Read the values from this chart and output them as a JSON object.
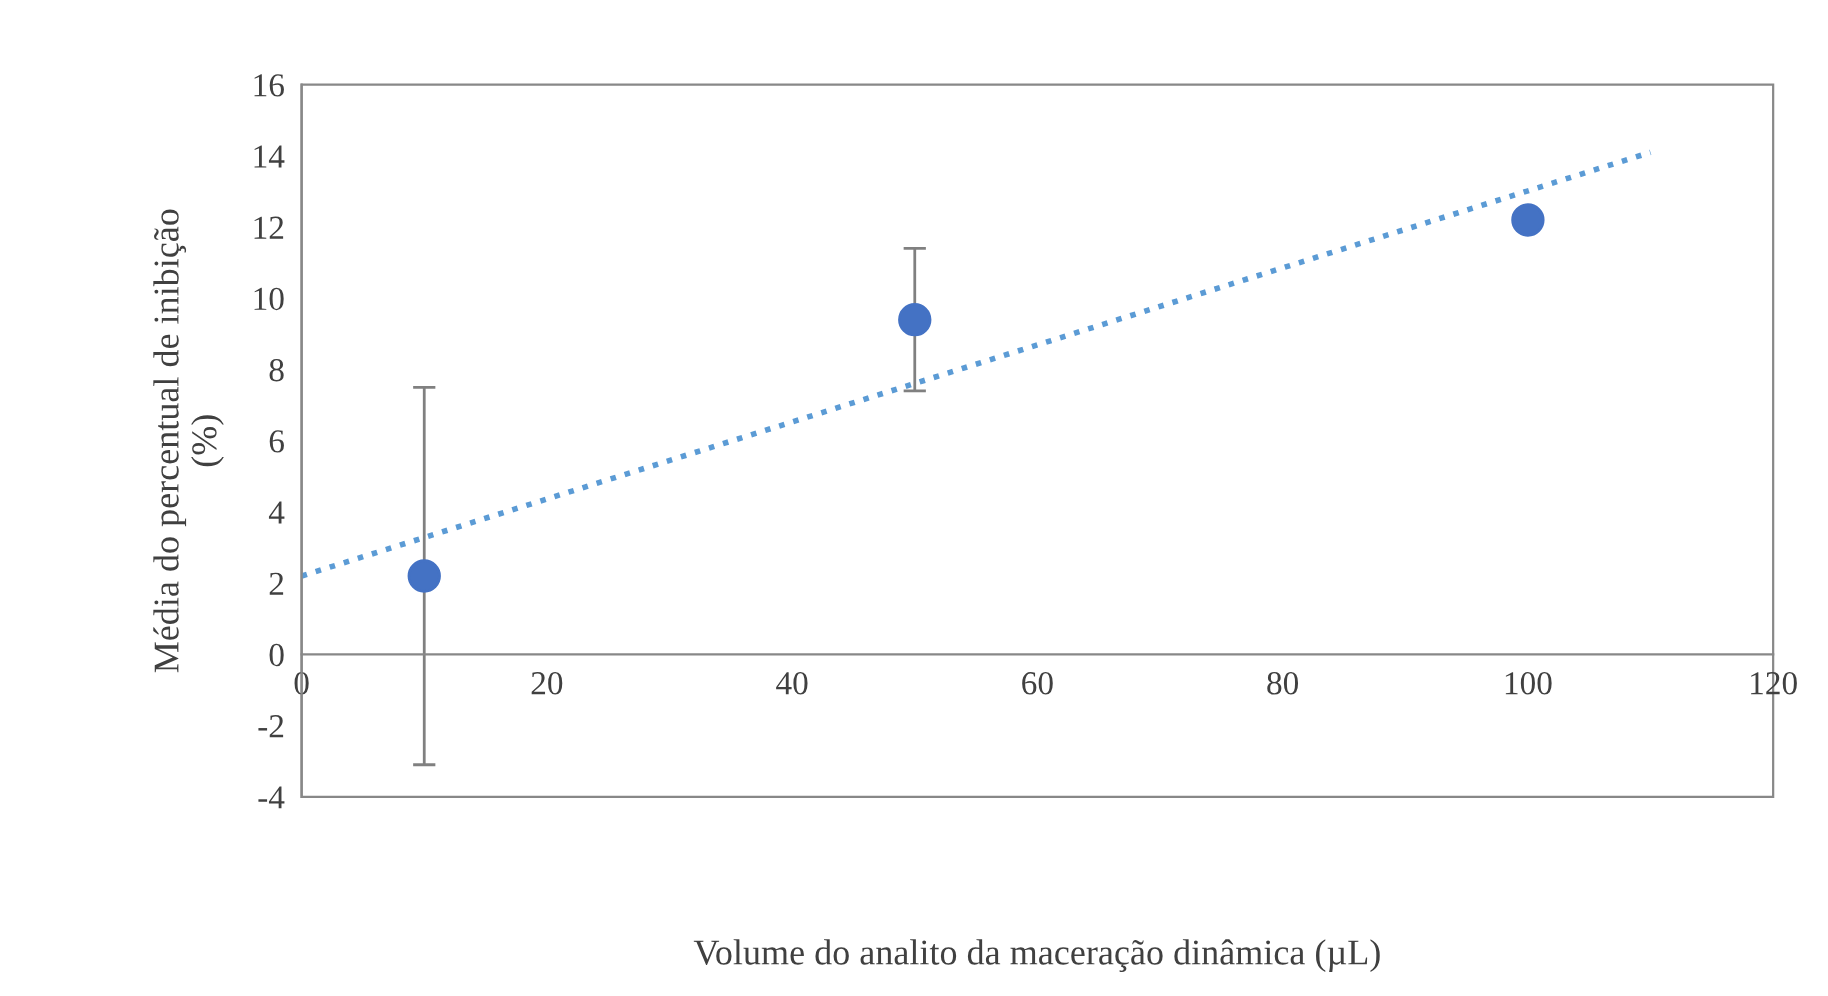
{
  "chart_data": {
    "type": "scatter",
    "xlabel": "Volume do analito da maceração dinâmica (µL)",
    "ylabel": "Média do percentual de inibição\n(%)",
    "xlim": [
      0,
      120
    ],
    "xticks": [
      0,
      20,
      40,
      60,
      80,
      100,
      120
    ],
    "ylim": [
      -4,
      16
    ],
    "yticks": [
      -4,
      -2,
      0,
      2,
      4,
      6,
      8,
      10,
      12,
      14,
      16
    ],
    "grid": false,
    "legend": false,
    "series": [
      {
        "marker": "circle",
        "color": "#4472c4",
        "x": [
          10,
          50,
          100
        ],
        "values": [
          2.2,
          9.4,
          12.2
        ],
        "errors": [
          5.3,
          2.0,
          null
        ]
      },
      {
        "type": "line",
        "marker": "none",
        "color": "#5b9bd5",
        "line_style": "dotted",
        "x": [
          0,
          110
        ],
        "values": [
          2.2,
          14.1
        ]
      }
    ]
  }
}
